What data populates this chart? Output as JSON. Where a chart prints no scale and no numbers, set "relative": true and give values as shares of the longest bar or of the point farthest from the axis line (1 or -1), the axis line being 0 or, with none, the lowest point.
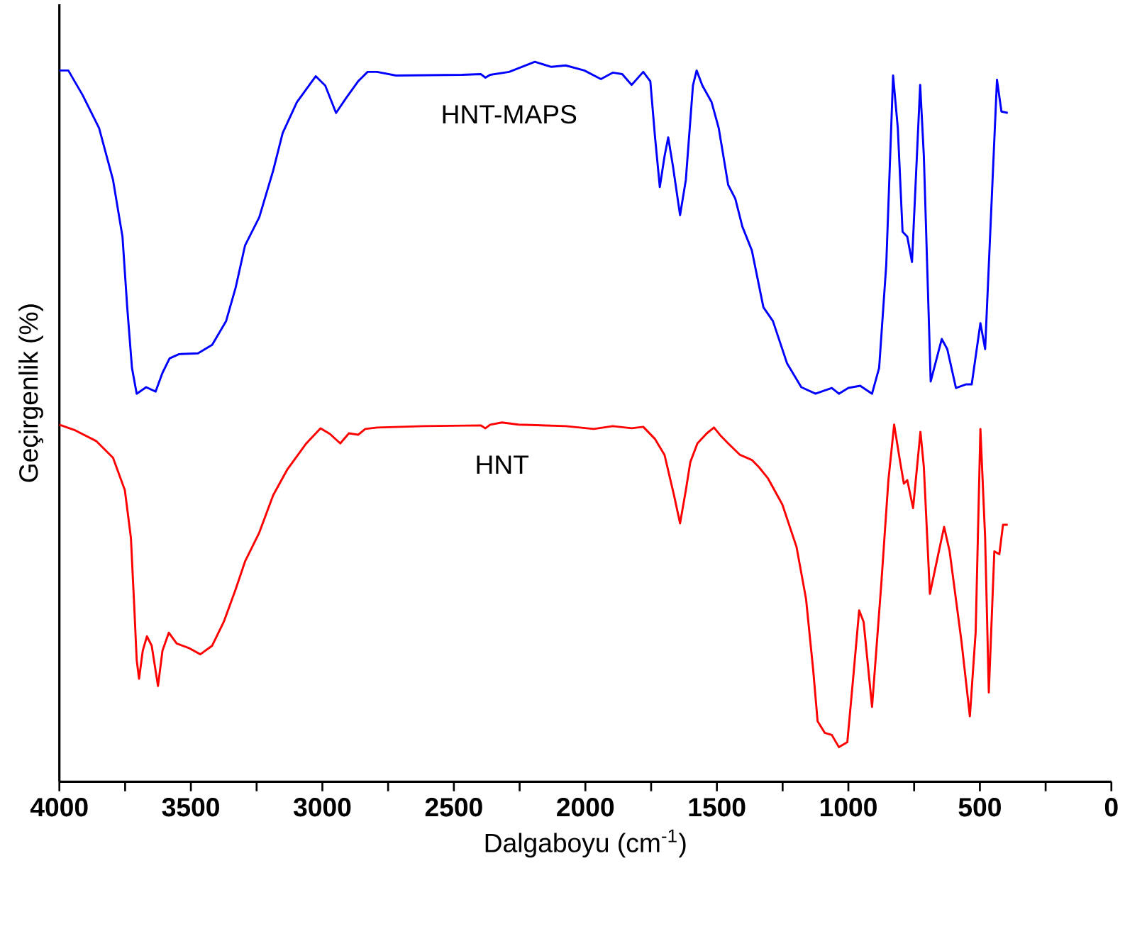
{
  "chart_data": {
    "type": "line",
    "relative": true,
    "xlabel": "Dalgaboyu (cm$^{-1}$)",
    "ylabel": "Geçirgenlik (%)",
    "xlim": [
      4000,
      0
    ],
    "xticks": [
      4000,
      {
        "value": 3750,
        "label": null
      },
      3500,
      {
        "value": 3250,
        "label": null
      },
      3000,
      {
        "value": 2750,
        "label": null
      },
      2500,
      {
        "value": 2250,
        "label": null
      },
      2000,
      {
        "value": 1750,
        "label": null
      },
      1500,
      {
        "value": 1250,
        "label": null
      },
      1000,
      {
        "value": 750,
        "label": null
      },
      500,
      {
        "value": 250,
        "label": null
      },
      0
    ],
    "series": [
      {
        "name": "HNT-MAPS",
        "color": "#0000ff",
        "x": [
          4000,
          3966,
          3912,
          3849,
          3796,
          3760,
          3742,
          3724,
          3706,
          3670,
          3634,
          3608,
          3581,
          3545,
          3473,
          3419,
          3366,
          3330,
          3294,
          3240,
          3187,
          3151,
          3097,
          3025,
          2989,
          2948,
          2909,
          2864,
          2828,
          2792,
          2720,
          2469,
          2398,
          2380,
          2362,
          2290,
          2192,
          2129,
          2075,
          2004,
          1941,
          1896,
          1860,
          1824,
          1780,
          1753,
          1735,
          1717,
          1699,
          1685,
          1667,
          1640,
          1618,
          1591,
          1577,
          1555,
          1520,
          1493,
          1457,
          1430,
          1403,
          1367,
          1323,
          1287,
          1233,
          1179,
          1125,
          1063,
          1036,
          1000,
          955,
          910,
          883,
          856,
          830,
          812,
          794,
          776,
          758,
          727,
          713,
          687,
          645,
          624,
          591,
          552,
          531,
          498,
          480,
          435,
          418,
          394
        ],
        "values": [
          0.988,
          0.988,
          0.954,
          0.908,
          0.836,
          0.757,
          0.659,
          0.575,
          0.539,
          0.548,
          0.542,
          0.568,
          0.588,
          0.594,
          0.595,
          0.607,
          0.64,
          0.686,
          0.745,
          0.784,
          0.849,
          0.901,
          0.944,
          0.98,
          0.967,
          0.929,
          0.95,
          0.973,
          0.986,
          0.986,
          0.981,
          0.982,
          0.983,
          0.978,
          0.982,
          0.986,
          1,
          0.993,
          0.995,
          0.988,
          0.976,
          0.985,
          0.983,
          0.968,
          0.986,
          0.973,
          0.895,
          0.826,
          0.869,
          0.895,
          0.855,
          0.787,
          0.836,
          0.967,
          0.988,
          0.967,
          0.944,
          0.908,
          0.829,
          0.81,
          0.771,
          0.738,
          0.659,
          0.64,
          0.581,
          0.548,
          0.539,
          0.547,
          0.539,
          0.547,
          0.55,
          0.539,
          0.575,
          0.718,
          0.981,
          0.908,
          0.764,
          0.757,
          0.722,
          0.968,
          0.869,
          0.556,
          0.615,
          0.601,
          0.547,
          0.552,
          0.552,
          0.637,
          0.601,
          0.975,
          0.931,
          0.929
        ]
      },
      {
        "name": "HNT",
        "color": "#ff0000",
        "x": [
          4000,
          3939,
          3859,
          3796,
          3751,
          3728,
          3715,
          3706,
          3697,
          3683,
          3667,
          3649,
          3625,
          3608,
          3584,
          3554,
          3509,
          3464,
          3419,
          3375,
          3330,
          3294,
          3240,
          3187,
          3133,
          3061,
          3007,
          2971,
          2932,
          2899,
          2864,
          2837,
          2792,
          2613,
          2398,
          2380,
          2362,
          2317,
          2254,
          2075,
          1968,
          1896,
          1824,
          1780,
          1735,
          1699,
          1663,
          1640,
          1618,
          1601,
          1574,
          1538,
          1511,
          1484,
          1457,
          1412,
          1367,
          1340,
          1305,
          1251,
          1197,
          1161,
          1134,
          1117,
          1090,
          1063,
          1036,
          1004,
          982,
          959,
          942,
          910,
          875,
          848,
          826,
          803,
          789,
          776,
          754,
          726,
          713,
          690,
          660,
          636,
          615,
          570,
          538,
          516,
          498,
          480,
          466,
          445,
          426,
          412,
          394
        ],
        "values": [
          0.496,
          0.488,
          0.473,
          0.45,
          0.405,
          0.339,
          0.241,
          0.169,
          0.143,
          0.182,
          0.202,
          0.189,
          0.133,
          0.182,
          0.207,
          0.192,
          0.186,
          0.177,
          0.189,
          0.222,
          0.267,
          0.306,
          0.346,
          0.398,
          0.434,
          0.47,
          0.491,
          0.483,
          0.47,
          0.484,
          0.482,
          0.49,
          0.492,
          0.494,
          0.495,
          0.491,
          0.496,
          0.499,
          0.496,
          0.494,
          0.49,
          0.494,
          0.491,
          0.493,
          0.476,
          0.454,
          0.398,
          0.359,
          0.405,
          0.444,
          0.47,
          0.484,
          0.492,
          0.48,
          0.47,
          0.454,
          0.447,
          0.437,
          0.421,
          0.385,
          0.326,
          0.254,
          0.156,
          0.084,
          0.068,
          0.065,
          0.048,
          0.055,
          0.143,
          0.238,
          0.222,
          0.104,
          0.274,
          0.418,
          0.496,
          0.444,
          0.414,
          0.419,
          0.38,
          0.486,
          0.437,
          0.261,
          0.313,
          0.354,
          0.32,
          0.195,
          0.091,
          0.208,
          0.49,
          0.339,
          0.124,
          0.32,
          0.316,
          0.357,
          0.357
        ]
      }
    ]
  }
}
